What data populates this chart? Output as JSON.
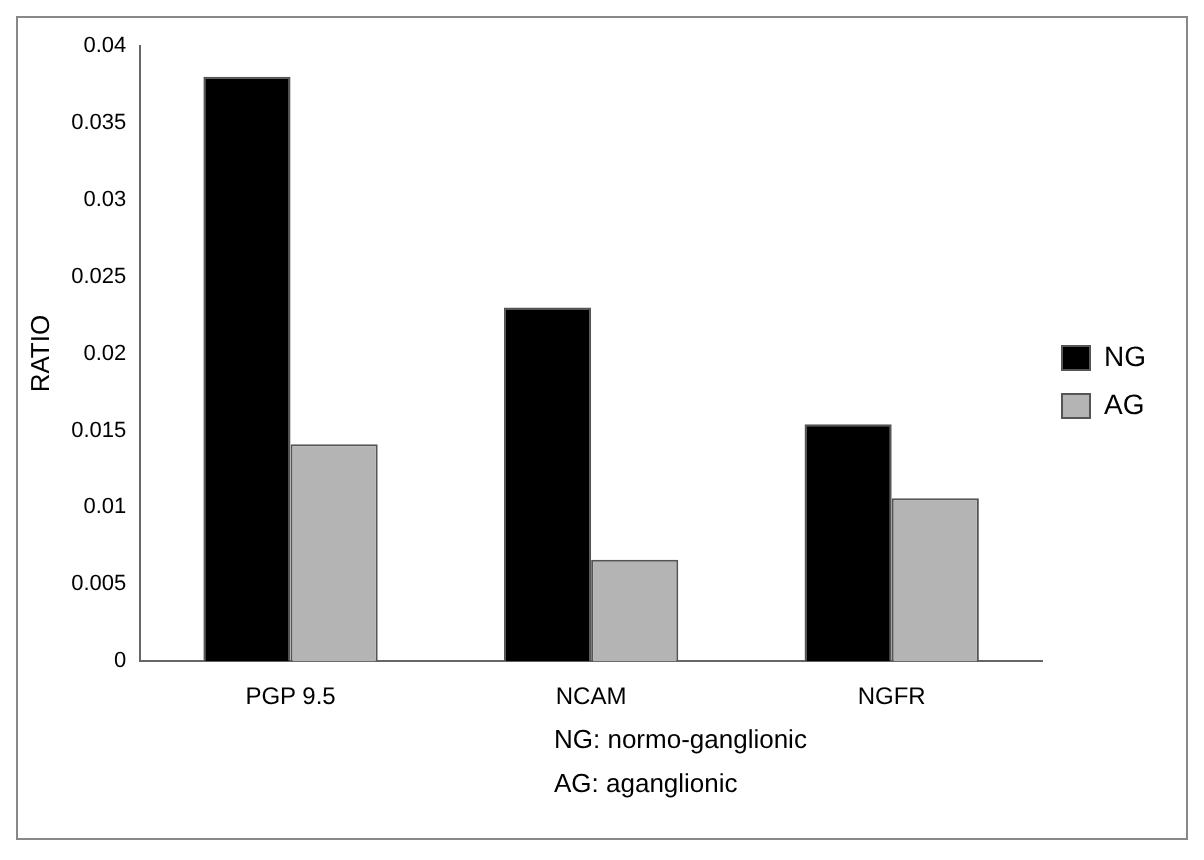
{
  "chart_data": {
    "type": "bar",
    "ylabel": "RATIO",
    "categories": [
      "PGP 9.5",
      "NCAM",
      "NGFR"
    ],
    "series": [
      {
        "name": "NG",
        "color": "#000000",
        "values": [
          0.038,
          0.023,
          0.0154
        ]
      },
      {
        "name": "AG",
        "color": "#b4b4b4",
        "values": [
          0.0141,
          0.0066,
          0.0106
        ]
      }
    ],
    "ylim": [
      0,
      0.04
    ],
    "yticks": [
      0,
      0.005,
      0.01,
      0.015,
      0.02,
      0.025,
      0.03,
      0.035,
      0.04
    ],
    "grid": false,
    "legend": "right",
    "annotations": [
      "NG: normo-ganglionic",
      "AG: aganglionic"
    ]
  }
}
